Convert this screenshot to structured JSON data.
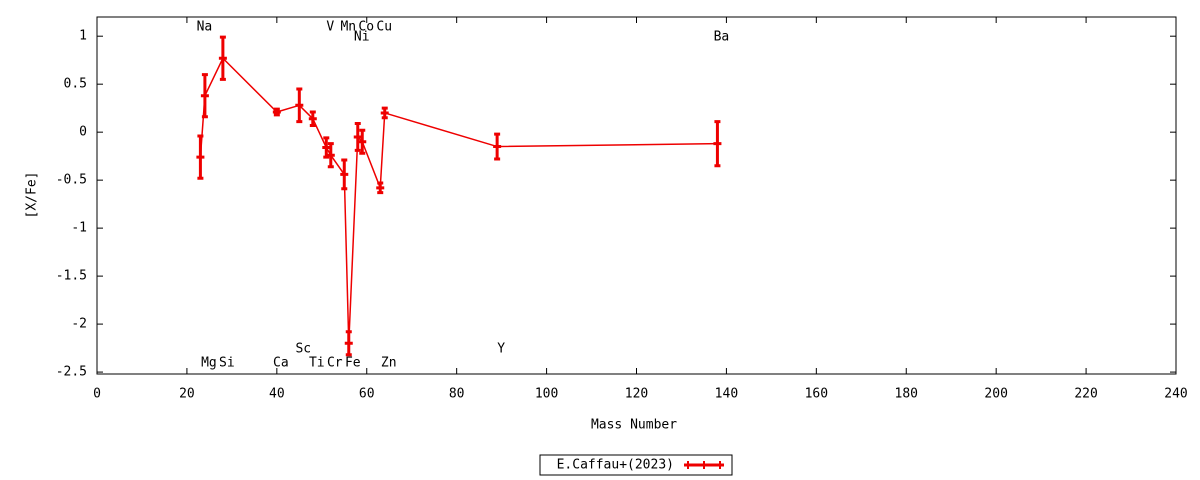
{
  "chart_data": {
    "type": "line",
    "xlabel": "Mass Number",
    "ylabel": "[X/Fe]",
    "xlim": [
      0,
      240
    ],
    "xticks": [
      0,
      20,
      40,
      60,
      80,
      100,
      120,
      140,
      160,
      180,
      200,
      220,
      240
    ],
    "ylim": [
      -2.52,
      1.2
    ],
    "yticks": [
      -2.5,
      -2,
      -1.5,
      -1,
      -0.5,
      0,
      0.5,
      1
    ],
    "series": [
      {
        "name": "E.Caffau+(2023)",
        "color": "#ee0000",
        "labels": [
          "Na",
          "Mg",
          "Si",
          "Ca",
          "Sc",
          "Ti",
          "V",
          "Cr",
          "Mn",
          "Fe",
          "Ni",
          "Co",
          "Cu",
          "Zn",
          "Y",
          "Ba"
        ],
        "x": [
          23,
          24,
          28,
          40,
          45,
          48,
          51,
          52,
          55,
          56,
          58,
          59,
          63,
          64,
          89,
          138
        ],
        "values": [
          -0.26,
          0.38,
          0.77,
          0.21,
          0.28,
          0.14,
          -0.16,
          -0.24,
          -0.44,
          -2.2,
          -0.05,
          -0.1,
          -0.58,
          0.2,
          -0.15,
          -0.12
        ],
        "errors": [
          0.22,
          0.22,
          0.22,
          0.03,
          0.17,
          0.07,
          0.1,
          0.12,
          0.15,
          0.12,
          0.14,
          0.12,
          0.05,
          0.05,
          0.13,
          0.23
        ]
      }
    ],
    "legend": "bottom"
  }
}
